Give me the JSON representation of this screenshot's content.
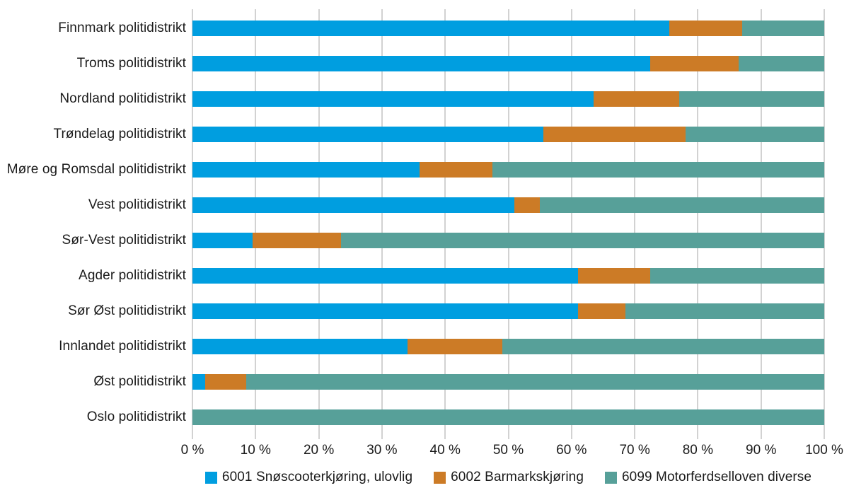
{
  "figure": {
    "background": "#ffffff",
    "text_color": "#1a1a1a",
    "gridline_color": "#a6a6a6"
  },
  "chart_data": {
    "type": "bar",
    "orientation": "horizontal",
    "stacked": true,
    "unit": "%",
    "grid": "vertical",
    "legend_position": "bottom",
    "xlim": [
      0,
      100
    ],
    "x_ticks": [
      {
        "value": 0,
        "label": "0 %"
      },
      {
        "value": 10,
        "label": "10 %"
      },
      {
        "value": 20,
        "label": "20 %"
      },
      {
        "value": 30,
        "label": "30 %"
      },
      {
        "value": 40,
        "label": "40 %"
      },
      {
        "value": 50,
        "label": "50 %"
      },
      {
        "value": 60,
        "label": "60 %"
      },
      {
        "value": 70,
        "label": "70 %"
      },
      {
        "value": 80,
        "label": "80 %"
      },
      {
        "value": 90,
        "label": "90 %"
      },
      {
        "value": 100,
        "label": "100 %"
      }
    ],
    "categories": [
      "Finnmark politidistrikt",
      "Troms politidistrikt",
      "Nordland politidistrikt",
      "Trøndelag politidistrikt",
      "Møre og Romsdal politidistrikt",
      "Vest politidistrikt",
      "Sør-Vest politidistrikt",
      "Agder politidistrikt",
      "Sør Øst politidistrikt",
      "Innlandet politidistrikt",
      "Øst politidistrikt",
      "Oslo politidistrikt"
    ],
    "series": [
      {
        "name": "6001 Snøscooterkjøring, ulovlig",
        "color": "#009EE0",
        "values": [
          75.5,
          72.5,
          63.5,
          55.5,
          36,
          51,
          9.5,
          61,
          61,
          34,
          2,
          0
        ]
      },
      {
        "name": "6002 Barmarkskjøring",
        "color": "#CC7B26",
        "values": [
          11.5,
          14,
          13.5,
          22.5,
          11.5,
          4,
          14,
          11.5,
          7.5,
          15,
          6.5,
          0
        ]
      },
      {
        "name": "6099 Motorferdselloven diverse",
        "color": "#57A099",
        "values": [
          13,
          13.5,
          23,
          22,
          52.5,
          45,
          76.5,
          27.5,
          31.5,
          51,
          91.5,
          100
        ]
      }
    ]
  }
}
